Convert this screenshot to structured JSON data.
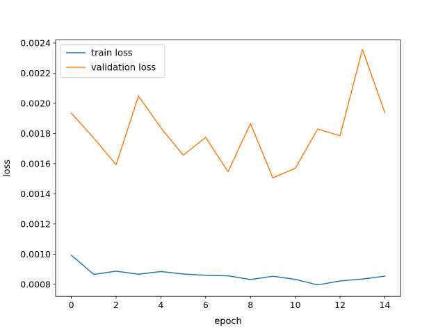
{
  "chart_data": {
    "type": "line",
    "xlabel": "epoch",
    "ylabel": "loss",
    "xlim": [
      -0.7,
      14.7
    ],
    "ylim": [
      0.00072,
      0.00242
    ],
    "x_ticks": [
      0,
      2,
      4,
      6,
      8,
      10,
      12,
      14
    ],
    "x_tick_labels": [
      "0",
      "2",
      "4",
      "6",
      "8",
      "10",
      "12",
      "14"
    ],
    "y_ticks": [
      0.0008,
      0.001,
      0.0012,
      0.0014,
      0.0016,
      0.0018,
      0.002,
      0.0022,
      0.0024
    ],
    "y_tick_labels": [
      "0.0008",
      "0.0010",
      "0.0012",
      "0.0014",
      "0.0016",
      "0.0018",
      "0.0020",
      "0.0022",
      "0.0024"
    ],
    "grid": false,
    "legend_position": "top-left",
    "x": [
      0,
      1,
      2,
      3,
      4,
      5,
      6,
      7,
      8,
      9,
      10,
      11,
      12,
      13,
      14
    ],
    "series": [
      {
        "name": "train loss",
        "color": "#1f77b4",
        "values": [
          0.000993,
          0.000866,
          0.000887,
          0.000867,
          0.000885,
          0.000868,
          0.00086,
          0.000856,
          0.000832,
          0.000853,
          0.000833,
          0.000796,
          0.000822,
          0.000835,
          0.000854
        ]
      },
      {
        "name": "validation loss",
        "color": "#ff7f0e",
        "values": [
          0.001935,
          0.00177,
          0.001593,
          0.002048,
          0.001838,
          0.001656,
          0.001774,
          0.001546,
          0.001866,
          0.001506,
          0.001569,
          0.001829,
          0.001785,
          0.002358,
          0.001938
        ]
      }
    ]
  }
}
